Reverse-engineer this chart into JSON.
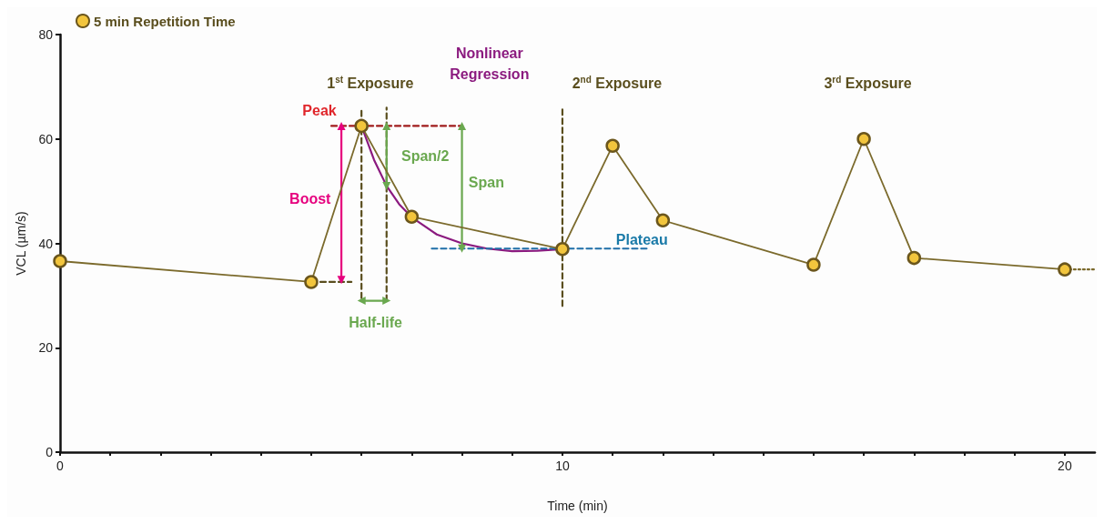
{
  "chart_data": {
    "type": "line",
    "xlabel": "Time (min)",
    "ylabel": "VCL (µm/s)",
    "xlim": [
      0,
      20.6
    ],
    "xticks": [
      0,
      {
        "value": 1,
        "label": null
      },
      {
        "value": 2,
        "label": null
      },
      {
        "value": 3,
        "label": null
      },
      {
        "value": 4,
        "label": null
      },
      {
        "value": 5,
        "label": null
      },
      {
        "value": 6,
        "label": null
      },
      {
        "value": 7,
        "label": null
      },
      {
        "value": 8,
        "label": null
      },
      {
        "value": 9,
        "label": null
      },
      10,
      {
        "value": 11,
        "label": null
      },
      {
        "value": 12,
        "label": null
      },
      {
        "value": 13,
        "label": null
      },
      {
        "value": 14,
        "label": null
      },
      {
        "value": 15,
        "label": null
      },
      {
        "value": 16,
        "label": null
      },
      {
        "value": 17,
        "label": null
      },
      {
        "value": 18,
        "label": null
      },
      {
        "value": 19,
        "label": null
      },
      20
    ],
    "ylim": [
      0,
      80
    ],
    "yticks": [
      0,
      20,
      40,
      60,
      80
    ],
    "grid": false,
    "legend": "top left",
    "marker": "circle",
    "series": [
      {
        "name": "5 min Repetition Time",
        "color": "#f2c53d",
        "x": [
          0,
          5,
          6,
          7,
          10,
          11,
          12,
          15,
          16,
          17,
          20
        ],
        "values": [
          36.6,
          32.6,
          62.5,
          45.1,
          38.9,
          58.7,
          44.4,
          35.9,
          60,
          37.2,
          35
        ]
      },
      {
        "type": "line",
        "color": "#7b6a2c",
        "marker": "none",
        "line_style": "dotted",
        "x": [
          20,
          20.6
        ],
        "values": [
          35,
          35
        ]
      },
      {
        "type": "line",
        "color": "#8b1a7f",
        "marker": "none",
        "x": [
          6,
          6.25,
          6.5,
          6.75,
          7,
          7.5,
          8,
          8.5,
          9,
          9.5,
          10
        ],
        "values": [
          62.5,
          56,
          51,
          47.5,
          45,
          41.7,
          40,
          39,
          38.5,
          38.6,
          38.9
        ]
      },
      {
        "type": "line",
        "color": "#a01c1c",
        "marker": "none",
        "line_style": "dashed",
        "x": [
          5.4,
          8
        ],
        "values": [
          62.5,
          62.5
        ]
      },
      {
        "type": "line",
        "color": "#1f6fa8",
        "marker": "none",
        "line_style": "dashed",
        "x": [
          7.4,
          11.7
        ],
        "values": [
          39,
          39
        ]
      },
      {
        "type": "line",
        "color": "#5a4e1e",
        "marker": "none",
        "line_style": "dashed",
        "x": [
          5,
          5.8
        ],
        "values": [
          32.6,
          32.6
        ]
      },
      {
        "type": "line",
        "color": "#5a4e1e",
        "marker": "none",
        "line_style": "dashed",
        "x": [
          6,
          6
        ],
        "values": [
          29.5,
          66
        ]
      },
      {
        "type": "line",
        "color": "#5a4e1e",
        "marker": "none",
        "line_style": "dashed",
        "x": [
          6.5,
          6.5
        ],
        "values": [
          29,
          66
        ]
      },
      {
        "type": "line",
        "color": "#5a4e1e",
        "marker": "none",
        "line_style": "dashed",
        "x": [
          10,
          10
        ],
        "values": [
          28,
          66
        ]
      },
      {
        "type": "line",
        "color": "#e6007e",
        "marker": "triangle",
        "x": [
          5.6,
          5.6
        ],
        "values": [
          33,
          62.5
        ]
      },
      {
        "type": "line",
        "color": "#6aa84f",
        "marker": "triangle",
        "x": [
          6.5,
          6.5
        ],
        "values": [
          51,
          62.5
        ]
      },
      {
        "type": "line",
        "color": "#6aa84f",
        "marker": "triangle",
        "x": [
          8,
          8
        ],
        "values": [
          39,
          62.5
        ]
      },
      {
        "type": "line",
        "color": "#6aa84f",
        "marker": "triangle",
        "x": [
          6,
          6.5
        ],
        "values": [
          29,
          29
        ]
      }
    ],
    "annotations": [
      "1$^{st}$ Exposure",
      "Nonlinear\nRegression",
      "2$^{nd}$ Exposure",
      "3$^{rd}$ Exposure",
      "Peak",
      "Boost",
      "Span/2",
      "Span",
      "Plateau",
      "Half-life"
    ]
  }
}
